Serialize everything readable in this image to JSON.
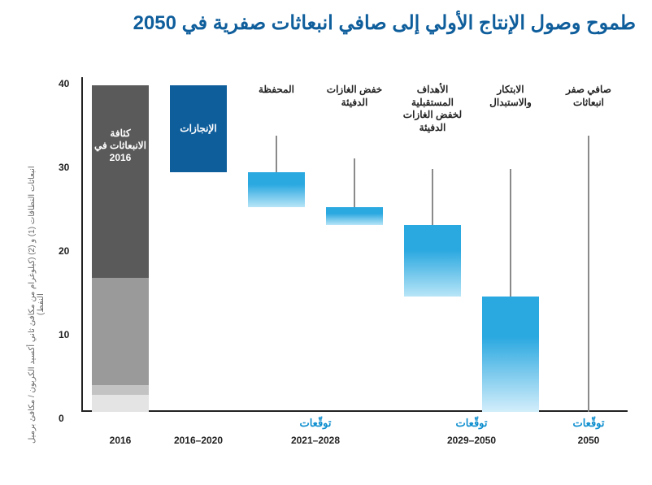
{
  "title": {
    "text": "طموح وصول الإنتاج الأولي إلى صافي انبعاثات صفرية في 2050",
    "color": "#0f5e9c",
    "fontsize": 24
  },
  "chart": {
    "type": "waterfall",
    "background": "#ffffff",
    "y": {
      "label": "انبعاثات النطاقات (1) و (2) (كيلوغرام من مكافئ ثاني أكسيد الكربون / مكافئ برميل النفط)",
      "min": 0,
      "max": 40,
      "ticks": [
        0,
        10,
        20,
        30,
        40
      ],
      "tick_fontsize": 12
    },
    "x_periods": [
      {
        "key": "p2016",
        "label": "2016"
      },
      {
        "key": "p2016_2020",
        "label": "2016–2020"
      },
      {
        "key": "p2021_2028",
        "label": "2021–2028",
        "forecast": "توقّعات"
      },
      {
        "key": "p2029_2050",
        "label": "2029–2050",
        "forecast": "توقّعات"
      },
      {
        "key": "p2050",
        "label": "2050",
        "forecast": "توقّعات"
      }
    ],
    "forecast_color": "#0f8fcf",
    "bars": {
      "baseline2016": {
        "segments": [
          {
            "from": 0,
            "to": 2,
            "color": "#e4e4e4"
          },
          {
            "from": 2,
            "to": 3.2,
            "color": "#c3c3c3"
          },
          {
            "from": 3.2,
            "to": 16,
            "color": "#9a9a9a"
          },
          {
            "from": 16,
            "to": 39,
            "color": "#5a5a5a"
          }
        ],
        "label": "كثافة الانبعاثات في 2016",
        "label_top": 34,
        "label_color": "#ffffff"
      },
      "achievements": {
        "from": 28.6,
        "to": 39,
        "color": "#0f5e9c",
        "label": "الإنجازات",
        "label_color": "#ffffff"
      },
      "bar_portfolio": {
        "from": 24.5,
        "to": 28.6,
        "color_top": "#2aa8e0",
        "color_bottom": "#b8e5f7",
        "top_label": "المحفظة",
        "range": [
          25,
          33
        ]
      },
      "bar_ghg": {
        "from": 22.3,
        "to": 24.5,
        "color_top": "#2aa8e0",
        "color_bottom": "#b8e5f7",
        "top_label": "خفض الغازات الدفيئة",
        "range": [
          22.3,
          30.3
        ]
      },
      "bar_future": {
        "from": 13.8,
        "to": 22.3,
        "color_top": "#2aa8e0",
        "color_bottom": "#b8e5f7",
        "top_label": "الأهداف المستقبلية لخفض الغازات الدفيئة",
        "range": [
          15,
          29
        ]
      },
      "bar_innov": {
        "from": 0,
        "to": 13.8,
        "color_top": "#2aa8e0",
        "color_bottom": "#d3eefb",
        "top_label": "الابتكار والاستبدال",
        "range": [
          3,
          29
        ]
      },
      "netzero": {
        "from": 0,
        "to": 0,
        "top_label": "صافي صفر انبعاثات",
        "range": [
          0,
          33
        ]
      }
    },
    "bar_width_ratio": 0.72
  }
}
